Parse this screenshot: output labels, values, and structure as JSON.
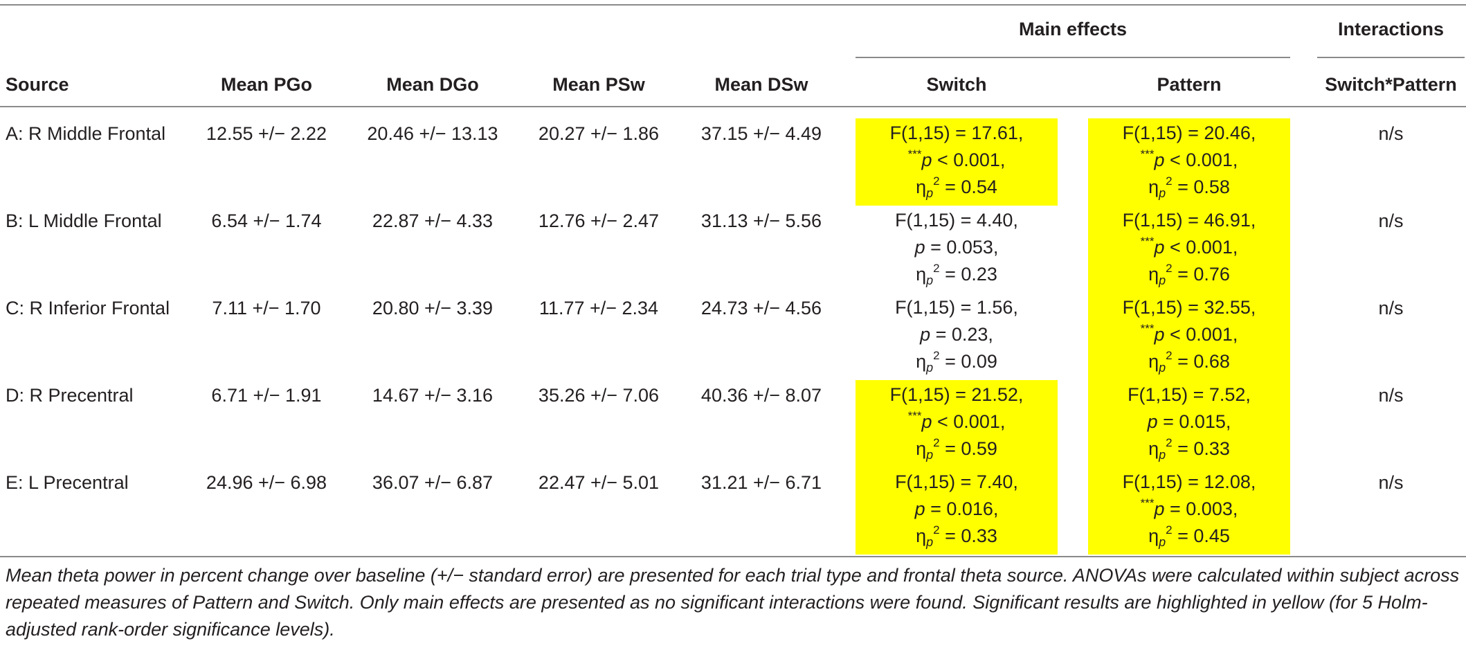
{
  "table": {
    "group_headers": {
      "main_effects": "Main effects",
      "interactions": "Interactions"
    },
    "columns": {
      "source": "Source",
      "mean_pgo": "Mean PGo",
      "mean_dgo": "Mean DGo",
      "mean_psw": "Mean PSw",
      "mean_dsw": "Mean DSw",
      "switch": "Switch",
      "pattern": "Pattern",
      "switch_pattern": "Switch*Pattern"
    },
    "rows": [
      {
        "source": "A: R Middle Frontal",
        "pgo": "12.55 +/− 2.22",
        "dgo": "20.46 +/− 13.13",
        "psw": "20.27 +/− 1.86",
        "dsw": "37.15 +/− 4.49",
        "switch": {
          "f": "F(1,15) = 17.61,",
          "stars": "***",
          "p": "p",
          "p_rest": " < 0.001,",
          "eta_val": " = 0.54",
          "highlight": true
        },
        "pattern": {
          "f": "F(1,15) = 20.46,",
          "stars": "***",
          "p": "p",
          "p_rest": " < 0.001,",
          "eta_val": " = 0.58",
          "highlight": true
        },
        "interaction": "n/s"
      },
      {
        "source": "B: L Middle Frontal",
        "pgo": "6.54 +/− 1.74",
        "dgo": "22.87 +/− 4.33",
        "psw": "12.76 +/− 2.47",
        "dsw": "31.13 +/− 5.56",
        "switch": {
          "f": "F(1,15) = 4.40,",
          "stars": "",
          "p": "p",
          "p_rest": " = 0.053,",
          "eta_val": " = 0.23",
          "highlight": false
        },
        "pattern": {
          "f": "F(1,15) = 46.91,",
          "stars": "***",
          "p": "p",
          "p_rest": " < 0.001,",
          "eta_val": " = 0.76",
          "highlight": true
        },
        "interaction": "n/s"
      },
      {
        "source": "C: R Inferior Frontal",
        "pgo": "7.11 +/− 1.70",
        "dgo": "20.80 +/− 3.39",
        "psw": "11.77 +/− 2.34",
        "dsw": "24.73 +/− 4.56",
        "switch": {
          "f": "F(1,15) = 1.56,",
          "stars": "",
          "p": "p",
          "p_rest": " = 0.23,",
          "eta_val": " = 0.09",
          "highlight": false
        },
        "pattern": {
          "f": "F(1,15) = 32.55,",
          "stars": "***",
          "p": "p",
          "p_rest": " < 0.001,",
          "eta_val": " = 0.68",
          "highlight": true
        },
        "interaction": "n/s"
      },
      {
        "source": "D: R Precentral",
        "pgo": "6.71 +/− 1.91",
        "dgo": "14.67 +/− 3.16",
        "psw": "35.26 +/− 7.06",
        "dsw": "40.36 +/− 8.07",
        "switch": {
          "f": "F(1,15) = 21.52,",
          "stars": "***",
          "p": "p",
          "p_rest": " < 0.001,",
          "eta_val": " = 0.59",
          "highlight": true
        },
        "pattern": {
          "f": "F(1,15) = 7.52,",
          "stars": "",
          "p": "p",
          "p_rest": " = 0.015,",
          "eta_val": " = 0.33",
          "highlight": true
        },
        "interaction": "n/s"
      },
      {
        "source": "E: L Precentral",
        "pgo": "24.96 +/− 6.98",
        "dgo": "36.07 +/− 6.87",
        "psw": "22.47 +/− 5.01",
        "dsw": "31.21 +/− 6.71",
        "switch": {
          "f": "F(1,15) = 7.40,",
          "stars": "",
          "p": "p",
          "p_rest": " = 0.016,",
          "eta_val": " = 0.33",
          "highlight": true
        },
        "pattern": {
          "f": "F(1,15) = 12.08,",
          "stars": "***",
          "p": "p",
          "p_rest": " = 0.003,",
          "eta_val": " = 0.45",
          "highlight": true
        },
        "interaction": "n/s"
      }
    ],
    "eta_symbol": "η",
    "eta_sub": "p",
    "eta_sup": "2",
    "highlight_color": "#ffff00"
  },
  "footnote": "Mean theta power in percent change over baseline (+/− standard error) are presented for each trial type and frontal theta source. ANOVAs were calculated within subject across repeated measures of Pattern and Switch. Only main effects are presented as no significant interactions were found. Significant results are highlighted in yellow (for 5 Holm-adjusted rank-order significance levels)."
}
